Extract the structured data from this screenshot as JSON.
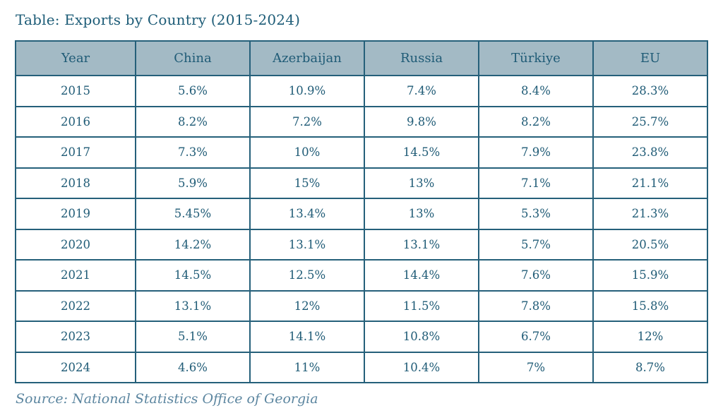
{
  "page": {
    "title": "Table: Exports by Country (2015-2024)",
    "source": "Source: National Statistics Office of Georgia"
  },
  "colors": {
    "border": "#25607a",
    "header_bg": "#a3bac5",
    "title_text": "#1d5c77",
    "cell_text": "#1f5b76",
    "source_text": "#5c86a0"
  },
  "chart_data": {
    "type": "table",
    "title": "Table: Exports by Country (2015-2024)",
    "columns": [
      "Year",
      "China",
      "Azerbaijan",
      "Russia",
      "Türkiye",
      "EU"
    ],
    "rows": [
      [
        "2015",
        "5.6%",
        "10.9%",
        "7.4%",
        "8.4%",
        "28.3%"
      ],
      [
        "2016",
        "8.2%",
        "7.2%",
        "9.8%",
        "8.2%",
        "25.7%"
      ],
      [
        "2017",
        "7.3%",
        "10%",
        "14.5%",
        "7.9%",
        "23.8%"
      ],
      [
        "2018",
        "5.9%",
        "15%",
        "13%",
        "7.1%",
        "21.1%"
      ],
      [
        "2019",
        "5.45%",
        "13.4%",
        "13%",
        "5.3%",
        "21.3%"
      ],
      [
        "2020",
        "14.2%",
        "13.1%",
        "13.1%",
        "5.7%",
        "20.5%"
      ],
      [
        "2021",
        "14.5%",
        "12.5%",
        "14.4%",
        "7.6%",
        "15.9%"
      ],
      [
        "2022",
        "13.1%",
        "12%",
        "11.5%",
        "7.8%",
        "15.8%"
      ],
      [
        "2023",
        "5.1%",
        "14.1%",
        "10.8%",
        "6.7%",
        "12%"
      ],
      [
        "2024",
        "4.6%",
        "11%",
        "10.4%",
        "7%",
        "8.7%"
      ]
    ],
    "source": "Source: National Statistics Office of Georgia",
    "legend_position": "none",
    "grid": true
  }
}
